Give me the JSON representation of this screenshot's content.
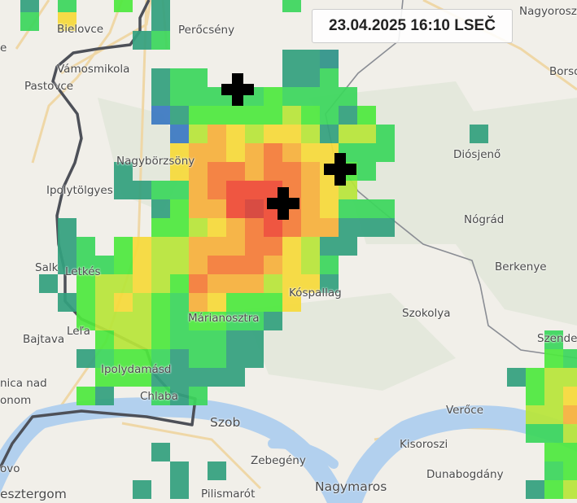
{
  "timestamp": "23.04.2025 16:10 LSEČ",
  "radar_colors": {
    "blue": "#3b78c2",
    "teal": "#34a07e",
    "darkteal": "#2f9389",
    "green": "#3cd65c",
    "lime": "#4fe83e",
    "yellowgreen": "#b8e53a",
    "yellow": "#f6d93a",
    "lightorange": "#f6b03c",
    "orange": "#f47c38",
    "red": "#ef4a34",
    "darkred": "#d63f36"
  },
  "map_colors": {
    "land": "#f1efe9",
    "water": "#b2d0ee",
    "border": "#4d5058",
    "road": "#efd7a6"
  },
  "markers": [
    {
      "type": "cross-icon"
    },
    {
      "type": "cross-icon"
    },
    {
      "type": "cross-icon"
    }
  ],
  "places": [
    {
      "name": "Bielovce"
    },
    {
      "name": "Perőcsény"
    },
    {
      "name": "Vámosmikola"
    },
    {
      "name": "Pastovce"
    },
    {
      "name": "Nagyorosz"
    },
    {
      "name": "Borso"
    },
    {
      "name": "Diósjenő"
    },
    {
      "name": "Nagybörzsöny"
    },
    {
      "name": "Ipolytölgyes"
    },
    {
      "name": "Nógrád"
    },
    {
      "name": "Berkenye"
    },
    {
      "name": "Salk"
    },
    {
      "name": "Letkés"
    },
    {
      "name": "Kóspallag"
    },
    {
      "name": "Szokolya"
    },
    {
      "name": "Márianosztra"
    },
    {
      "name": "Bajtava"
    },
    {
      "name": "Leľa"
    },
    {
      "name": "Szende"
    },
    {
      "name": "Ipolydamásd"
    },
    {
      "name": "nica nad"
    },
    {
      "name": "onom"
    },
    {
      "name": "Chlaba"
    },
    {
      "name": "Szob"
    },
    {
      "name": "Verőce"
    },
    {
      "name": "Kisoroszi"
    },
    {
      "name": "Zebegény"
    },
    {
      "name": "Dunabogdány"
    },
    {
      "name": "ovo"
    },
    {
      "name": "Nagymaros"
    },
    {
      "name": "Pilismarót"
    },
    {
      "name": "esztergom"
    },
    {
      "name": "e"
    }
  ]
}
